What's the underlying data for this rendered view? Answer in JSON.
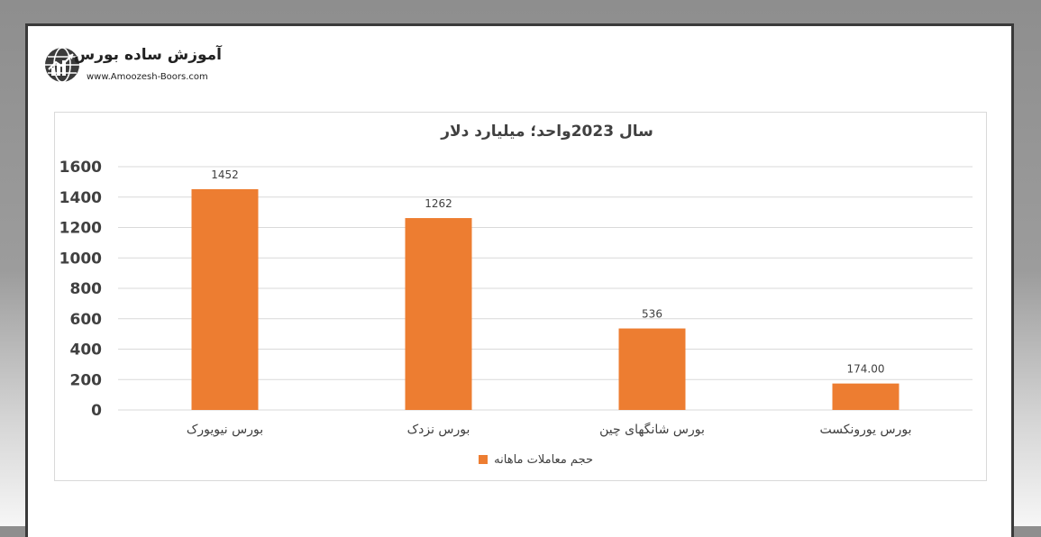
{
  "logo": {
    "title": "آموزش ساده بورس",
    "url": "www.Amoozesh-Boors.com"
  },
  "colors": {
    "bar": "#ed7d31",
    "grid": "#d9d9d9",
    "text": "#404040"
  },
  "chart_data": {
    "type": "bar",
    "title": "سال 2023واحد؛ میلیارد دلار",
    "categories": [
      "بورس نیویورک",
      "بورس نزدک",
      "بورس شانگهای چین",
      "بورس یورونکست"
    ],
    "series": [
      {
        "name": "حجم معاملات ماهانه",
        "values": [
          1452,
          1262,
          536,
          174
        ]
      }
    ],
    "data_labels": [
      "1452",
      "1262",
      "536",
      "174.00"
    ],
    "ylim": [
      0,
      1600
    ],
    "yticks": [
      0,
      200,
      400,
      600,
      800,
      1000,
      1200,
      1400,
      1600
    ],
    "grid": true,
    "legend": "bottom",
    "xlabel": "",
    "ylabel": ""
  }
}
